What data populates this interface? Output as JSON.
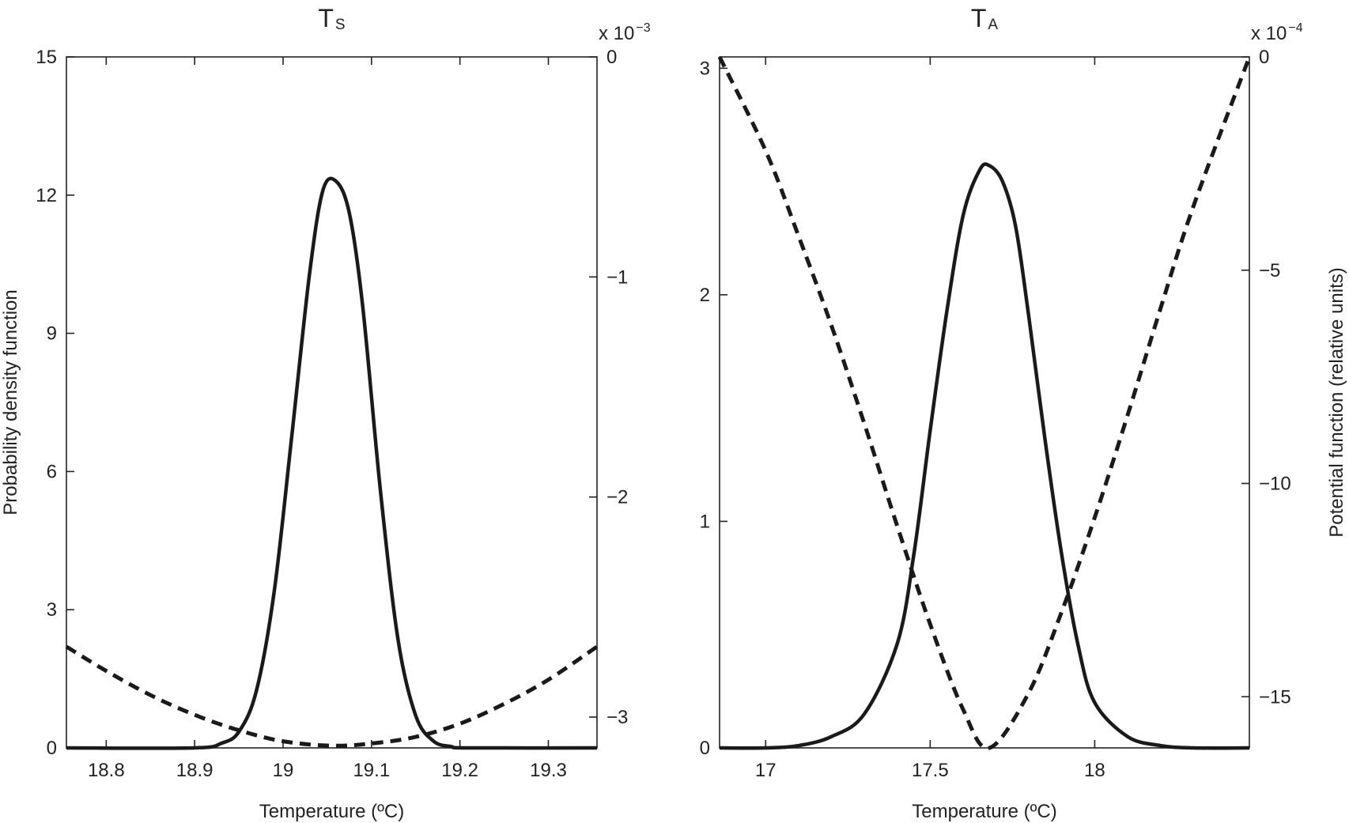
{
  "chart_data": [
    {
      "type": "line",
      "title": "T",
      "title_subscript": "S",
      "xlabel": "Temperature (ºC)",
      "ylabel": "Probability density function",
      "y2label": "",
      "xlim": [
        18.755,
        19.355
      ],
      "ylim": [
        0,
        15
      ],
      "y2lim": [
        -3.14,
        0
      ],
      "y2_exponent": {
        "base": "x 10",
        "power": "−3"
      },
      "x_ticks": [
        18.8,
        18.9,
        19.0,
        19.1,
        19.2,
        19.3
      ],
      "x_tick_labels": [
        "18.8",
        "18.9",
        "19",
        "19.1",
        "19.2",
        "19.3"
      ],
      "y_ticks": [
        0,
        3,
        6,
        9,
        12,
        15
      ],
      "y_tick_labels": [
        "0",
        "3",
        "6",
        "9",
        "12",
        "15"
      ],
      "y2_ticks": [
        0,
        -1,
        -2,
        -3
      ],
      "y2_tick_labels": [
        "0",
        "−1",
        "−2",
        "−3"
      ],
      "grid": false,
      "legend": "none",
      "series": [
        {
          "style": "solid",
          "axis": "left",
          "x": [
            18.755,
            18.9,
            18.93,
            18.95,
            18.97,
            18.99,
            19.01,
            19.03,
            19.045,
            19.06,
            19.075,
            19.09,
            19.11,
            19.13,
            19.15,
            19.17,
            19.19,
            19.21,
            19.355
          ],
          "y": [
            0,
            0,
            0.1,
            0.35,
            1.25,
            3.4,
            6.8,
            10.3,
            12.1,
            12.3,
            11.6,
            9.6,
            5.6,
            2.35,
            0.7,
            0.15,
            0.03,
            0,
            0
          ]
        },
        {
          "style": "dashed",
          "axis": "right",
          "x": [
            18.755,
            18.8,
            18.85,
            18.9,
            18.95,
            19.0,
            19.055,
            19.1,
            19.15,
            19.2,
            19.25,
            19.3,
            19.355
          ],
          "y": [
            -2.68,
            -2.79,
            -2.9,
            -2.99,
            -3.06,
            -3.11,
            -3.13,
            -3.12,
            -3.09,
            -3.03,
            -2.94,
            -2.83,
            -2.68
          ]
        }
      ]
    },
    {
      "type": "line",
      "title": "T",
      "title_subscript": "A",
      "xlabel": "Temperature (ºC)",
      "ylabel": "",
      "y2label": "Potential function (relative units)",
      "xlim": [
        16.86,
        18.47
      ],
      "ylim": [
        0,
        3.05
      ],
      "y2lim": [
        -16.2,
        0
      ],
      "y2_exponent": {
        "base": "x 10",
        "power": "−4"
      },
      "x_ticks": [
        17.0,
        17.5,
        18.0
      ],
      "x_tick_labels": [
        "17",
        "17.5",
        "18"
      ],
      "y_ticks": [
        0,
        1,
        2,
        3
      ],
      "y_tick_labels": [
        "0",
        "1",
        "2",
        "3"
      ],
      "y2_ticks": [
        0,
        -5,
        -10,
        -15
      ],
      "y2_tick_labels": [
        "0",
        "−5",
        "−10",
        "−15"
      ],
      "grid": false,
      "legend": "none",
      "series": [
        {
          "style": "solid",
          "axis": "left",
          "x": [
            16.86,
            17.0,
            17.1,
            17.2,
            17.3,
            17.4,
            17.45,
            17.5,
            17.55,
            17.6,
            17.65,
            17.68,
            17.72,
            17.76,
            17.8,
            17.85,
            17.9,
            17.95,
            18.0,
            18.1,
            18.2,
            18.3,
            18.47
          ],
          "y": [
            0,
            0,
            0.01,
            0.05,
            0.15,
            0.46,
            0.85,
            1.4,
            1.92,
            2.35,
            2.55,
            2.57,
            2.5,
            2.3,
            1.9,
            1.35,
            0.85,
            0.45,
            0.2,
            0.05,
            0.01,
            0,
            0
          ]
        },
        {
          "style": "dashed",
          "axis": "right",
          "x": [
            16.86,
            17.0,
            17.1,
            17.2,
            17.3,
            17.4,
            17.5,
            17.6,
            17.68,
            17.8,
            17.9,
            18.0,
            18.1,
            18.2,
            18.3,
            18.47
          ],
          "y": [
            0,
            -2.2,
            -4.2,
            -6.3,
            -8.6,
            -11.0,
            -13.3,
            -15.3,
            -16.2,
            -14.9,
            -13.0,
            -10.8,
            -8.4,
            -5.9,
            -3.5,
            0
          ]
        }
      ]
    }
  ]
}
